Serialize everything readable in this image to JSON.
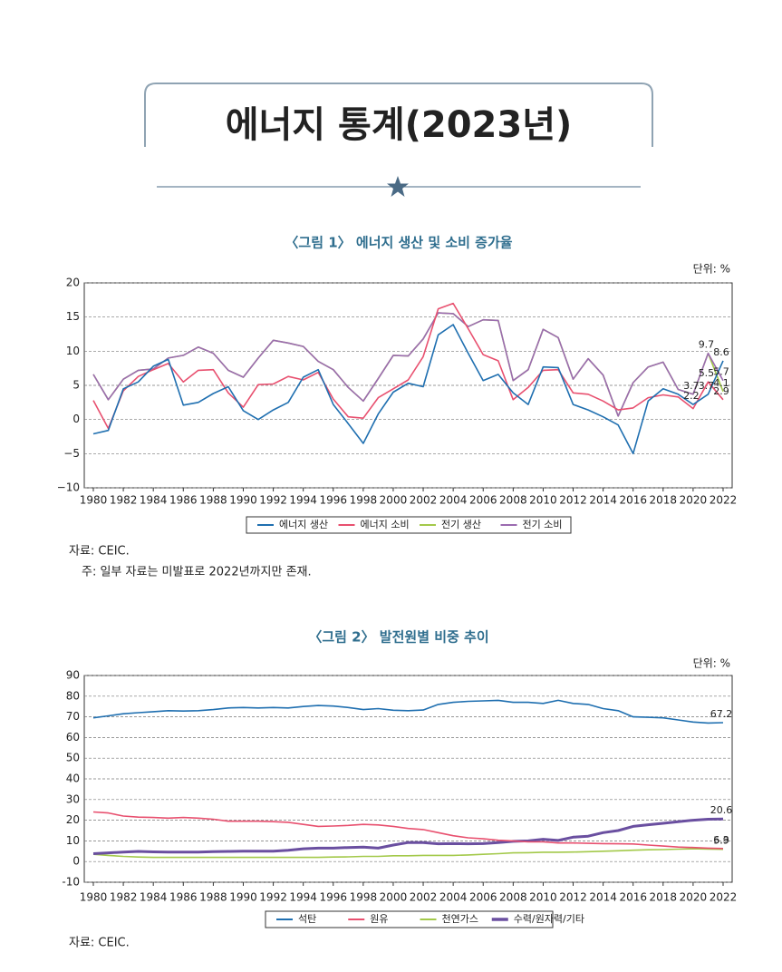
{
  "title": "에너지 통계(2023년)",
  "chart_data": [
    {
      "type": "line",
      "caption": "〈그림 1〉 에너지 생산 및 소비 증가율",
      "unit": "단위: %",
      "source": "자료: CEIC.",
      "note": "주: 일부 자료는 미발표로 2022년까지만 존재.",
      "x": [
        1980,
        1981,
        1982,
        1983,
        1984,
        1985,
        1986,
        1987,
        1988,
        1989,
        1990,
        1991,
        1992,
        1993,
        1994,
        1995,
        1996,
        1997,
        1998,
        1999,
        2000,
        2001,
        2002,
        2003,
        2004,
        2005,
        2006,
        2007,
        2008,
        2009,
        2010,
        2011,
        2012,
        2013,
        2014,
        2015,
        2016,
        2017,
        2018,
        2019,
        2020,
        2021,
        2022
      ],
      "xlim": [
        1980,
        2022
      ],
      "xticks": [
        1980,
        1982,
        1984,
        1986,
        1988,
        1990,
        1992,
        1994,
        1996,
        1998,
        2000,
        2002,
        2004,
        2006,
        2008,
        2010,
        2012,
        2014,
        2016,
        2018,
        2020,
        2022
      ],
      "ylim": [
        -10,
        20
      ],
      "yticks": [
        {
          "value": -10,
          "label": "−10"
        },
        {
          "value": -5,
          "label": "−5"
        },
        0,
        5,
        10,
        15,
        20
      ],
      "grid": true,
      "series": [
        {
          "name": "에너지 생산",
          "color": "#1f6fb0",
          "width": 1.6,
          "values": [
            -2.1,
            -1.6,
            4.5,
            5.5,
            7.8,
            8.8,
            2.1,
            2.5,
            3.8,
            4.8,
            1.3,
            0,
            1.4,
            2.5,
            6.2,
            7.3,
            2.2,
            -0.6,
            -3.5,
            0.8,
            4,
            5.3,
            4.8,
            12.4,
            13.9,
            9.7,
            5.7,
            6.6,
            3.9,
            2.2,
            7.7,
            7.6,
            2.2,
            1.4,
            0.4,
            -0.8,
            -5,
            2.7,
            4.5,
            3.7,
            2.2,
            3.7,
            8.6
          ],
          "value_labels": [
            null,
            null,
            null,
            null,
            null,
            null,
            null,
            null,
            null,
            null,
            null,
            null,
            null,
            null,
            null,
            null,
            null,
            null,
            null,
            null,
            null,
            null,
            null,
            null,
            null,
            null,
            null,
            null,
            null,
            null,
            null,
            null,
            null,
            null,
            null,
            null,
            null,
            null,
            null,
            null,
            "2.2",
            "3.7",
            "8.6"
          ]
        },
        {
          "name": "에너지 소비",
          "color": "#e8506f",
          "width": 1.6,
          "values": [
            2.8,
            -1.3,
            4.2,
            6.3,
            7.3,
            8.2,
            5.5,
            7.2,
            7.3,
            3.9,
            1.8,
            5.1,
            5.2,
            6.3,
            5.8,
            6.9,
            3,
            0.4,
            0.2,
            3.2,
            4.5,
            5.8,
            9.2,
            16.2,
            17,
            13.3,
            9.5,
            8.6,
            2.9,
            4.7,
            7.2,
            7.3,
            3.9,
            3.7,
            2.7,
            1.4,
            1.7,
            3.2,
            3.6,
            3.3,
            1.6,
            5.5,
            2.9
          ],
          "value_labels": [
            null,
            null,
            null,
            null,
            null,
            null,
            null,
            null,
            null,
            null,
            null,
            null,
            null,
            null,
            null,
            null,
            null,
            null,
            null,
            null,
            null,
            null,
            null,
            null,
            null,
            null,
            null,
            null,
            null,
            null,
            null,
            null,
            null,
            null,
            null,
            null,
            null,
            null,
            null,
            null,
            null,
            "5.5",
            "2.9"
          ]
        },
        {
          "name": "전기 생산",
          "color": "#a3c94a",
          "width": 1.6,
          "values": [
            6.6,
            2.9,
            5.9,
            7.2,
            7.4,
            9,
            9.4,
            10.6,
            9.7,
            7.2,
            6.2,
            9,
            11.6,
            11.2,
            10.7,
            8.5,
            7.3,
            4.7,
            2.7,
            6,
            9.4,
            9.3,
            11.8,
            15.6,
            15.5,
            13.6,
            14.6,
            14.5,
            5.7,
            7.3,
            13.2,
            12,
            5.9,
            8.9,
            6.5,
            0.5,
            5.4,
            7.7,
            8.4,
            4.4,
            3.7,
            9.7,
            4.1
          ],
          "value_labels": [
            null,
            null,
            null,
            null,
            null,
            null,
            null,
            null,
            null,
            null,
            null,
            null,
            null,
            null,
            null,
            null,
            null,
            null,
            null,
            null,
            null,
            null,
            null,
            null,
            null,
            null,
            null,
            null,
            null,
            null,
            null,
            null,
            null,
            null,
            null,
            null,
            null,
            null,
            null,
            null,
            null,
            null,
            "4.1"
          ]
        },
        {
          "name": "전기 소비",
          "color": "#9b6bb0",
          "width": 1.6,
          "values": [
            6.6,
            2.9,
            5.9,
            7.2,
            7.4,
            9,
            9.4,
            10.6,
            9.7,
            7.2,
            6.2,
            9,
            11.6,
            11.2,
            10.7,
            8.5,
            7.3,
            4.7,
            2.7,
            6,
            9.4,
            9.3,
            11.8,
            15.6,
            15.5,
            13.6,
            14.6,
            14.5,
            5.7,
            7.3,
            13.2,
            12,
            5.9,
            8.9,
            6.5,
            0.5,
            5.4,
            7.7,
            8.4,
            4.4,
            3.7,
            9.7,
            5.7
          ],
          "value_labels": [
            null,
            null,
            null,
            null,
            null,
            null,
            null,
            null,
            null,
            null,
            null,
            null,
            null,
            null,
            null,
            null,
            null,
            null,
            null,
            null,
            null,
            null,
            null,
            null,
            null,
            null,
            null,
            null,
            null,
            null,
            null,
            null,
            null,
            null,
            null,
            null,
            null,
            null,
            null,
            null,
            "3.7",
            "9.7",
            "5.7"
          ]
        }
      ]
    },
    {
      "type": "line",
      "caption": "〈그림 2〉 발전원별 비중 추이",
      "unit": "단위: %",
      "source": "자료: CEIC.",
      "x": [
        1980,
        1981,
        1982,
        1983,
        1984,
        1985,
        1986,
        1987,
        1988,
        1989,
        1990,
        1991,
        1992,
        1993,
        1994,
        1995,
        1996,
        1997,
        1998,
        1999,
        2000,
        2001,
        2002,
        2003,
        2004,
        2005,
        2006,
        2007,
        2008,
        2009,
        2010,
        2011,
        2012,
        2013,
        2014,
        2015,
        2016,
        2017,
        2018,
        2019,
        2020,
        2021,
        2022
      ],
      "xlim": [
        1980,
        2022
      ],
      "xticks": [
        1980,
        1982,
        1984,
        1986,
        1988,
        1990,
        1992,
        1994,
        1996,
        1998,
        2000,
        2002,
        2004,
        2006,
        2008,
        2010,
        2012,
        2014,
        2016,
        2018,
        2020,
        2022
      ],
      "ylim": [
        -10,
        90
      ],
      "yticks": [
        -10,
        0,
        10,
        20,
        30,
        40,
        50,
        60,
        70,
        80,
        90
      ],
      "grid": true,
      "series": [
        {
          "name": "석탄",
          "color": "#1f6fb0",
          "width": 1.6,
          "values": [
            69.5,
            70.5,
            71.5,
            72,
            72.5,
            73,
            72.8,
            73,
            73.5,
            74.3,
            74.5,
            74.3,
            74.5,
            74.3,
            75,
            75.5,
            75.2,
            74.5,
            73.5,
            74,
            73.2,
            73,
            73.3,
            76,
            77,
            77.5,
            77.7,
            78,
            77,
            77,
            76.5,
            78,
            76.5,
            76,
            74,
            73,
            70,
            69.8,
            69.5,
            68.5,
            67.5,
            67,
            67.2
          ],
          "value_labels": [
            null,
            null,
            null,
            null,
            null,
            null,
            null,
            null,
            null,
            null,
            null,
            null,
            null,
            null,
            null,
            null,
            null,
            null,
            null,
            null,
            null,
            null,
            null,
            null,
            null,
            null,
            null,
            null,
            null,
            null,
            null,
            null,
            null,
            null,
            null,
            null,
            null,
            null,
            null,
            null,
            null,
            null,
            "67.2"
          ]
        },
        {
          "name": "원유",
          "color": "#e8506f",
          "width": 1.6,
          "values": [
            24,
            23.5,
            22,
            21.5,
            21.3,
            21,
            21.3,
            21,
            20.5,
            19.5,
            19.5,
            19.5,
            19.3,
            19,
            18,
            17,
            17.2,
            17.5,
            18,
            17.7,
            17,
            16,
            15.5,
            14,
            12.5,
            11.5,
            11,
            10.3,
            10,
            9.5,
            9.5,
            9,
            9,
            8.8,
            8.7,
            8.6,
            8.5,
            8,
            7.5,
            7,
            6.8,
            6.5,
            6.3
          ],
          "value_labels": [
            null,
            null,
            null,
            null,
            null,
            null,
            null,
            null,
            null,
            null,
            null,
            null,
            null,
            null,
            null,
            null,
            null,
            null,
            null,
            null,
            null,
            null,
            null,
            null,
            null,
            null,
            null,
            null,
            null,
            null,
            null,
            null,
            null,
            null,
            null,
            null,
            null,
            null,
            null,
            null,
            null,
            null,
            "6.3"
          ]
        },
        {
          "name": "천연가스",
          "color": "#a3c94a",
          "width": 1.6,
          "values": [
            3.5,
            3,
            2.5,
            2.2,
            2,
            2,
            2,
            2,
            2,
            2,
            2,
            2,
            2,
            2,
            2,
            2,
            2.2,
            2.3,
            2.5,
            2.5,
            2.8,
            2.8,
            3,
            3,
            3,
            3.2,
            3.5,
            3.8,
            4.2,
            4.3,
            4.5,
            4.5,
            4.6,
            4.8,
            5,
            5.2,
            5.5,
            5.7,
            5.8,
            6,
            6.2,
            6,
            5.9
          ],
          "value_labels": [
            null,
            null,
            null,
            null,
            null,
            null,
            null,
            null,
            null,
            null,
            null,
            null,
            null,
            null,
            null,
            null,
            null,
            null,
            null,
            null,
            null,
            null,
            null,
            null,
            null,
            null,
            null,
            null,
            null,
            null,
            null,
            null,
            null,
            null,
            null,
            null,
            null,
            null,
            null,
            null,
            null,
            null,
            "5.9"
          ]
        },
        {
          "name": "수력/원자력/기타",
          "color": "#6a4fa0",
          "width": 3,
          "values": [
            3.8,
            4.2,
            4.6,
            4.9,
            4.7,
            4.6,
            4.6,
            4.6,
            4.8,
            4.9,
            5,
            5,
            5,
            5.5,
            6.2,
            6.5,
            6.5,
            6.8,
            7,
            6.5,
            8,
            9.2,
            9.2,
            8.6,
            8.7,
            8.6,
            8.7,
            9.2,
            9.8,
            10,
            10.8,
            10.2,
            11.8,
            12.3,
            14,
            15,
            17,
            17.8,
            18.5,
            19.3,
            20,
            20.5,
            20.6
          ],
          "value_labels": [
            null,
            null,
            null,
            null,
            null,
            null,
            null,
            null,
            null,
            null,
            null,
            null,
            null,
            null,
            null,
            null,
            null,
            null,
            null,
            null,
            null,
            null,
            null,
            null,
            null,
            null,
            null,
            null,
            null,
            null,
            null,
            null,
            null,
            null,
            null,
            null,
            null,
            null,
            null,
            null,
            null,
            null,
            "20.6"
          ]
        }
      ]
    }
  ]
}
